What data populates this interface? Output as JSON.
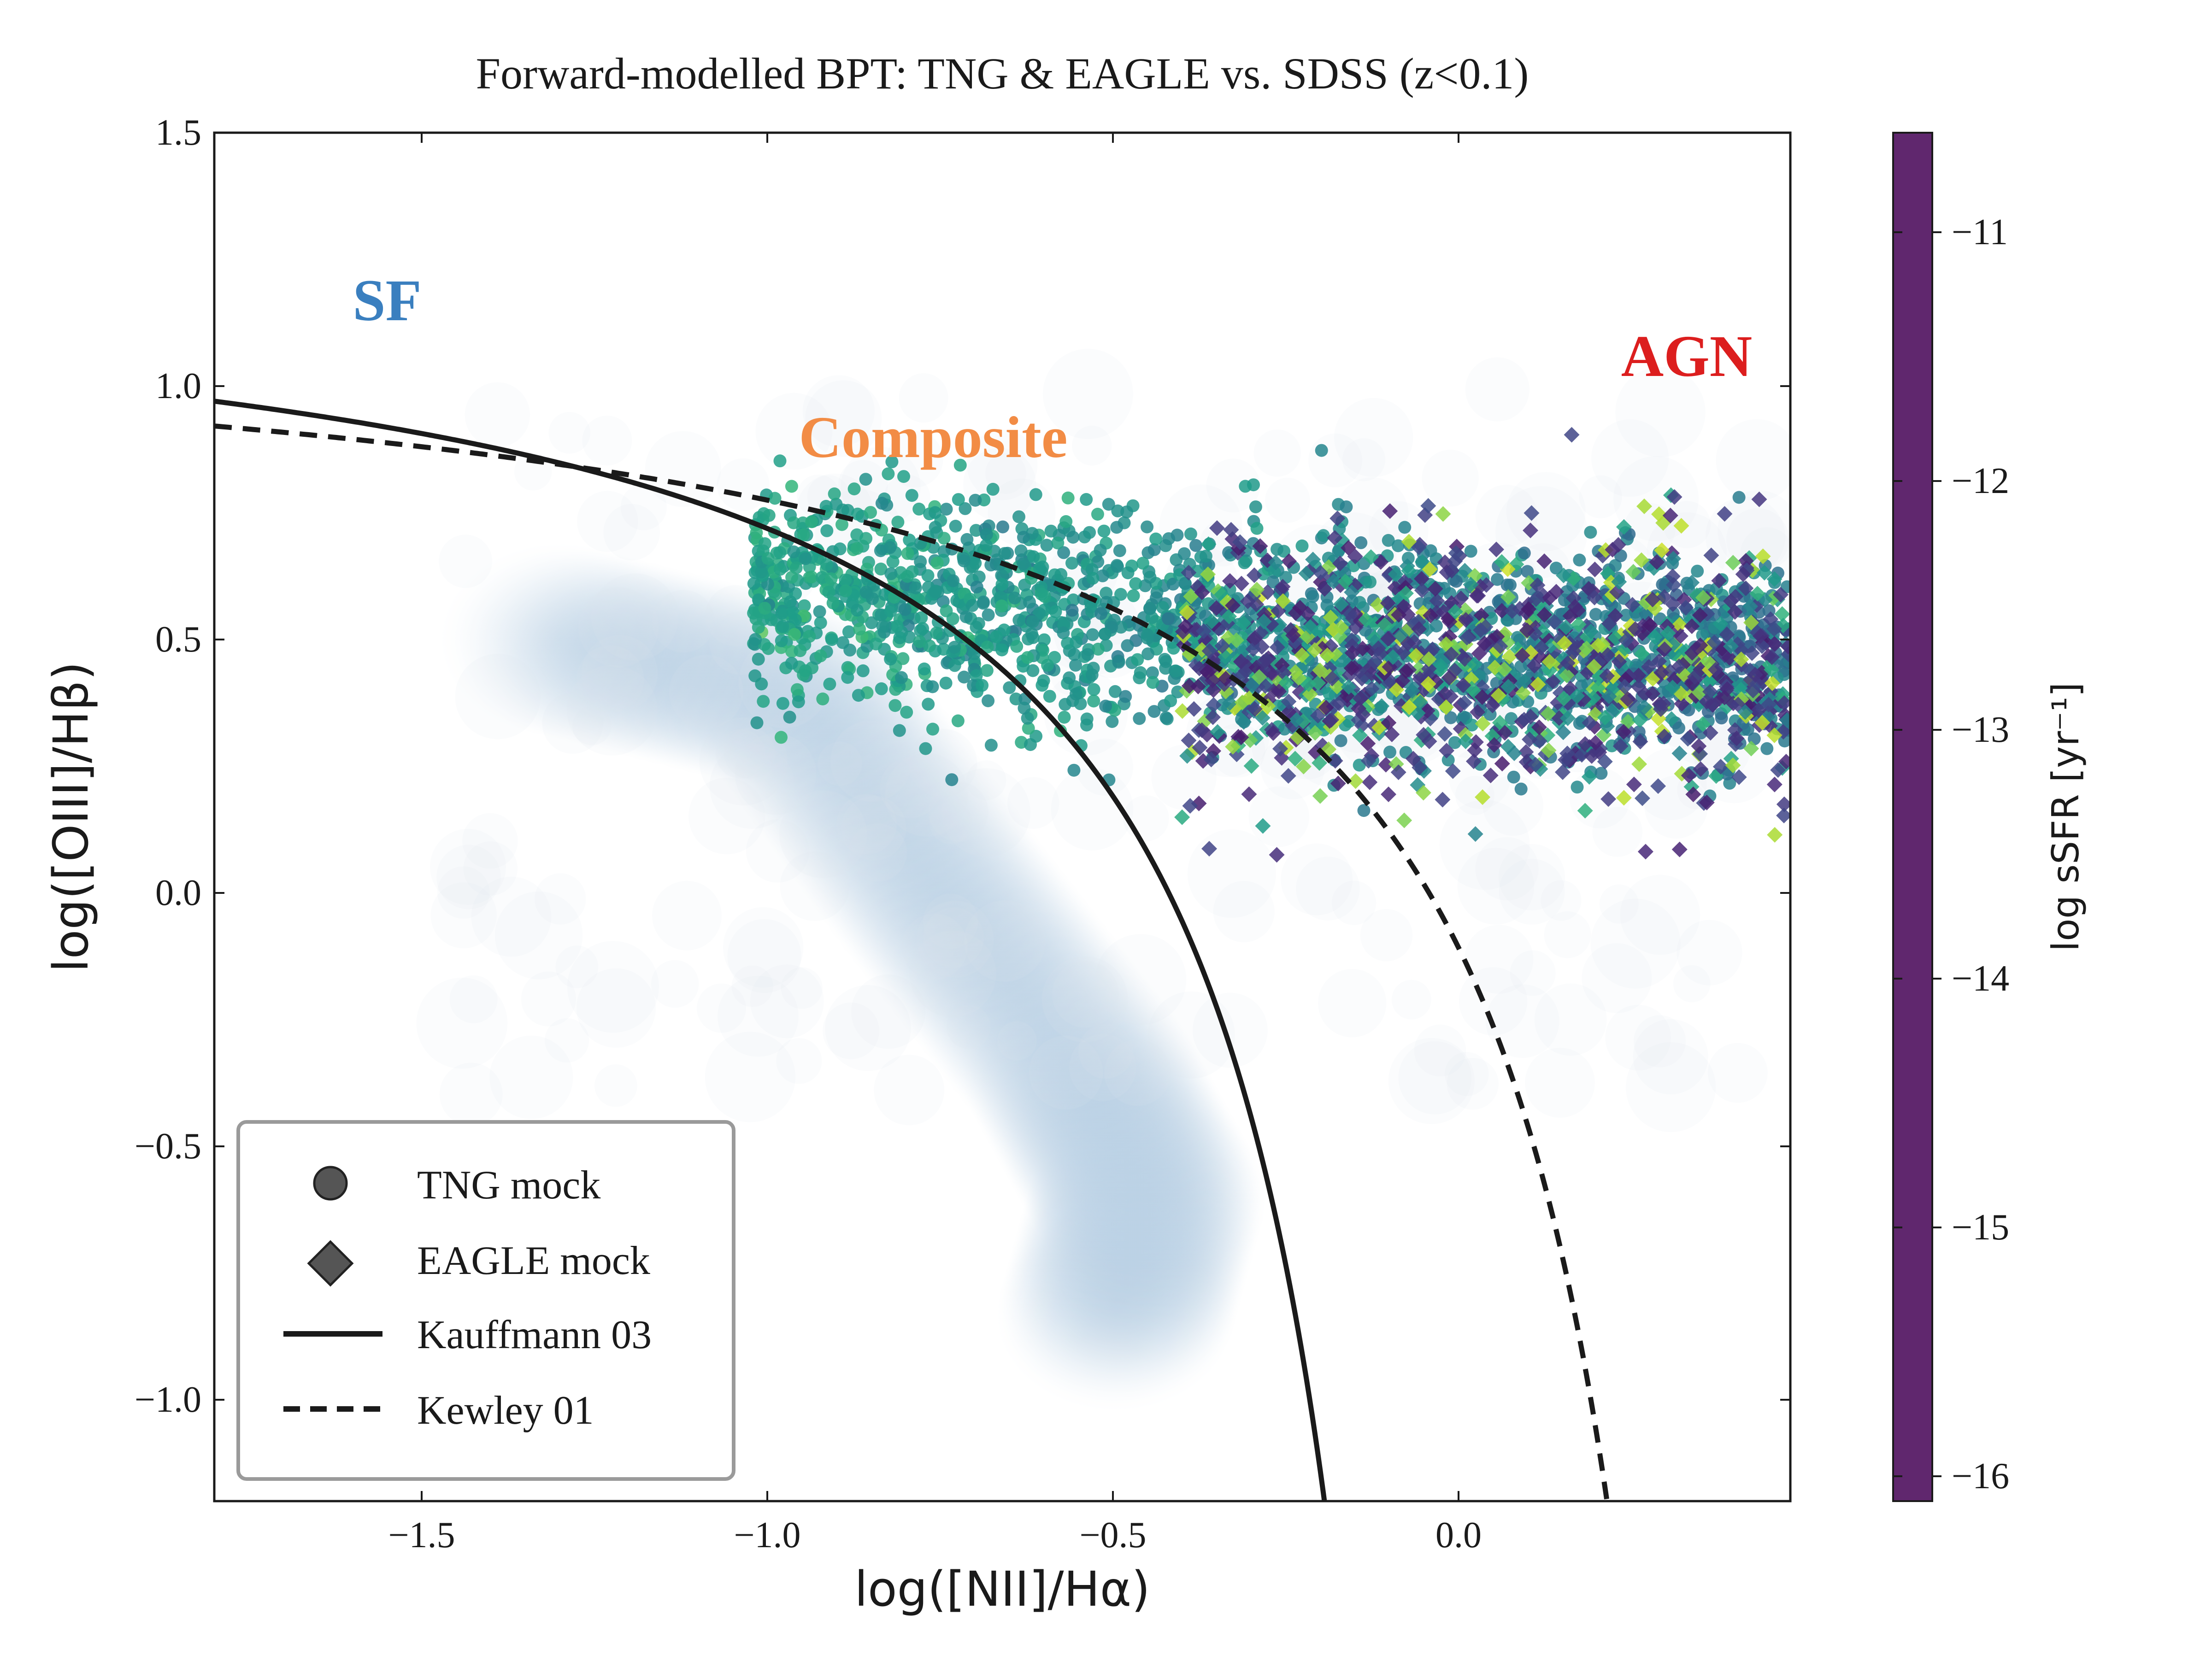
{
  "chart_data": {
    "type": "scatter",
    "title": "Forward-modelled BPT: TNG & EAGLE vs. SDSS (z<0.1)",
    "xlabel": "log([NII]/Hα)",
    "ylabel": "log([OIII]/Hβ)",
    "xlim": [
      -1.8,
      0.48
    ],
    "ylim": [
      -1.2,
      1.5
    ],
    "x_ticks": [
      -1.5,
      -1.0,
      -0.5,
      0.0
    ],
    "x_tick_labels": [
      "−1.5",
      "−1.0",
      "−0.5",
      "0.0"
    ],
    "y_ticks": [
      -1.0,
      -0.5,
      0.0,
      0.5,
      1.0,
      1.5
    ],
    "y_tick_labels": [
      "−1.0",
      "−0.5",
      "0.0",
      "0.5",
      "1.0",
      "1.5"
    ],
    "grid": false,
    "legend_position": "lower-left",
    "region_labels": [
      {
        "text": "SF",
        "x": -1.55,
        "y": 1.13,
        "color": "#3a7fbf"
      },
      {
        "text": "Composite",
        "x": -0.76,
        "y": 0.86,
        "color": "#f28c45"
      },
      {
        "text": "AGN",
        "x": 0.33,
        "y": 1.02,
        "color": "#dc1e1e"
      }
    ],
    "background_density": {
      "name": "SDSS",
      "description_shown": "hexbin density, light blue",
      "color": "#b8cfe3",
      "ridge": [
        [
          -1.3,
          0.5
        ],
        [
          -0.95,
          0.38
        ],
        [
          -0.75,
          0.0
        ],
        [
          -0.55,
          -0.35
        ],
        [
          -0.45,
          -0.6
        ],
        [
          -0.5,
          -0.85
        ]
      ]
    },
    "series": [
      {
        "name": "TNG mock",
        "marker": "circle",
        "x_range": [
          -1.02,
          0.48
        ],
        "y_center": 0.52,
        "y_spread": 0.12,
        "ssfr_range": [
          -13.8,
          -13.0
        ]
      },
      {
        "name": "EAGLE mock",
        "marker": "diamond",
        "x_range": [
          -0.4,
          0.48
        ],
        "y_center": 0.45,
        "y_spread": 0.12,
        "ssfr_range": [
          -16.0,
          -10.8
        ]
      }
    ],
    "lines": [
      {
        "name": "Kauffmann 03",
        "style": "solid",
        "equation": "0.61/(x-0.05)+1.3"
      },
      {
        "name": "Kewley 01",
        "style": "dashed",
        "equation": "0.61/(x-0.47)+1.19"
      }
    ],
    "colorbar": {
      "label": "log sSFR [yr⁻¹]",
      "range": [
        -16.1,
        -10.6
      ],
      "ticks": [
        -11,
        -12,
        -13,
        -14,
        -15,
        -16
      ],
      "tick_labels": [
        "−11",
        "−12",
        "−13",
        "−14",
        "−15",
        "−16"
      ],
      "colormap": "viridis",
      "colors": [
        "#440154",
        "#482878",
        "#3e4a89",
        "#31688e",
        "#26828e",
        "#1f9e89",
        "#35b779",
        "#6ece58",
        "#b5de2b",
        "#fde725"
      ]
    }
  }
}
